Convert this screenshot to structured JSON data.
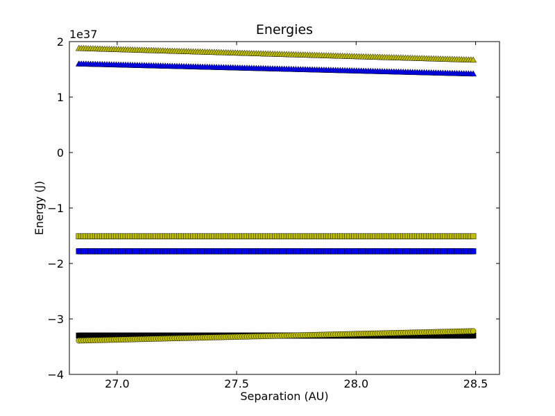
{
  "chart_data": {
    "type": "scatter",
    "title": "Energies",
    "xlabel": "Separation (AU)",
    "ylabel": "Energy (J)",
    "y_offset_label": "1e37",
    "xlim": [
      26.8,
      28.6
    ],
    "ylim": [
      -4,
      2
    ],
    "x_ticks": [
      27.0,
      27.5,
      28.0,
      28.5
    ],
    "x_tick_labels": [
      "27.0",
      "27.5",
      "28.0",
      "28.5"
    ],
    "y_ticks": [
      -4,
      -3,
      -2,
      -1,
      0,
      1,
      2
    ],
    "y_tick_labels": [
      "−4",
      "−3",
      "−2",
      "−1",
      "0",
      "1",
      "2"
    ],
    "grid": false,
    "x_range": [
      26.84,
      28.49
    ],
    "series": [
      {
        "marker": "triangle",
        "color": "#bfbf00",
        "y_start": 1.88,
        "y_end": 1.67
      },
      {
        "marker": "triangle",
        "color": "#0000ff",
        "y_start": 1.6,
        "y_end": 1.42
      },
      {
        "marker": "square",
        "color": "#bfbf00",
        "y_start": -1.51,
        "y_end": -1.51
      },
      {
        "marker": "square",
        "color": "#0000ff",
        "y_start": -1.78,
        "y_end": -1.78
      },
      {
        "marker": "square",
        "color": "#000000",
        "y_start": -3.3,
        "y_end": -3.3
      },
      {
        "marker": "circle",
        "color": "#bfbf00",
        "y_start": -3.39,
        "y_end": -3.22
      }
    ]
  }
}
